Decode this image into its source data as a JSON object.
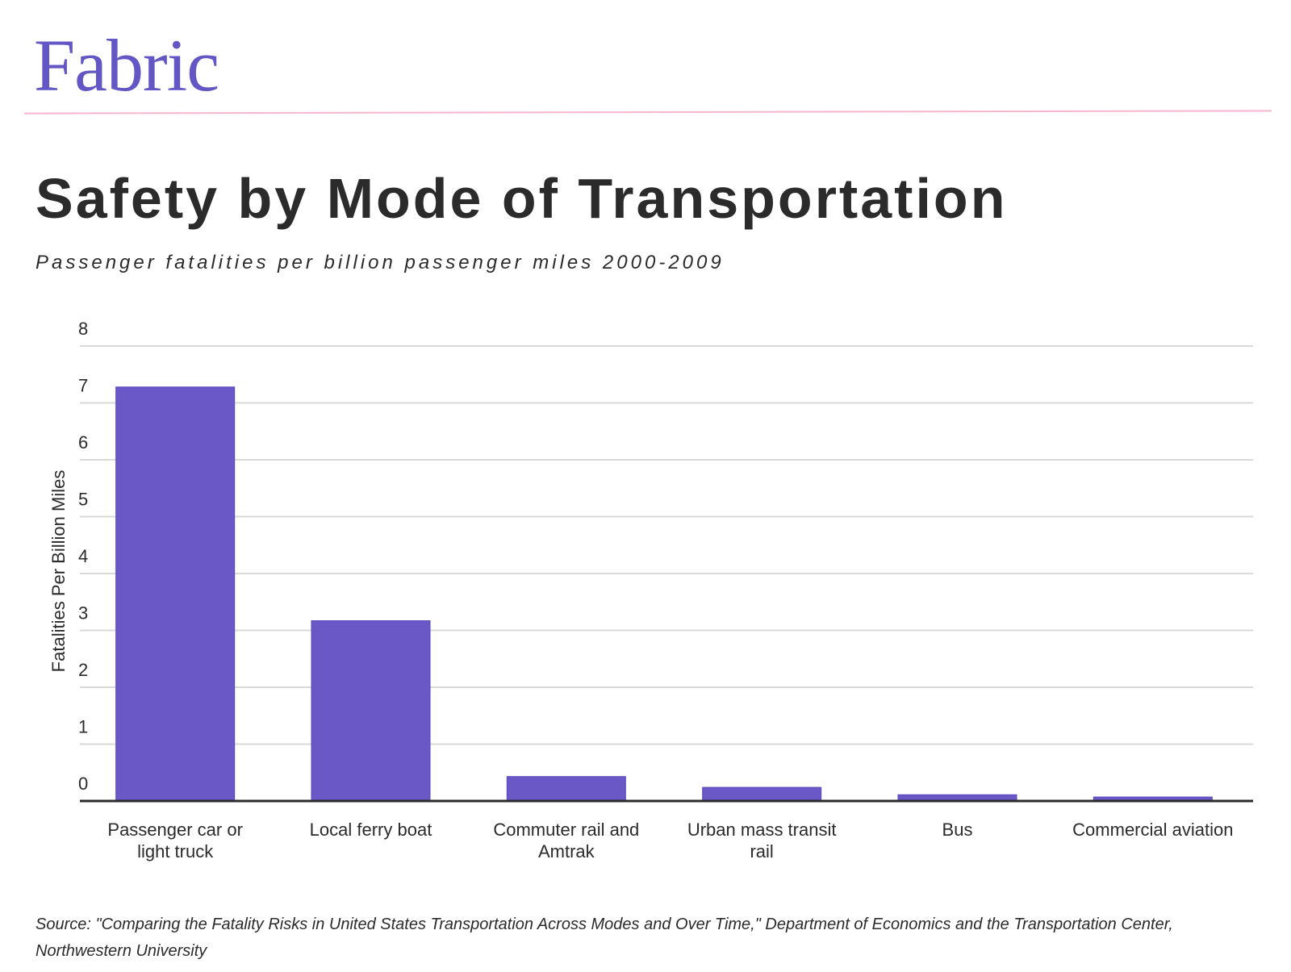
{
  "brand": {
    "logo": "Fabric",
    "accent": "#6257c4",
    "rule_color": "#f7b6cf"
  },
  "chart_data": {
    "type": "bar",
    "title": "Safety by Mode of Transportation",
    "subtitle": "Passenger fatalities per billion passenger miles 2000-2009",
    "xlabel": "",
    "ylabel": "Fatalities Per Billion Miles",
    "ylim": [
      0,
      8
    ],
    "yticks": [
      0,
      1,
      2,
      3,
      4,
      5,
      6,
      7,
      8
    ],
    "grid": true,
    "bar_color": "#6958c6",
    "categories": [
      [
        "Passenger car or",
        "light truck"
      ],
      [
        "Local ferry boat"
      ],
      [
        "Commuter rail and",
        "Amtrak"
      ],
      [
        "Urban mass transit",
        "rail"
      ],
      [
        "Bus"
      ],
      [
        "Commercial aviation"
      ]
    ],
    "values": [
      7.28,
      3.17,
      0.43,
      0.24,
      0.11,
      0.07
    ]
  },
  "source": "Source: \"Comparing the Fatality Risks in United States Transportation Across Modes and Over Time,\" Department of Economics and the Transportation Center, Northwestern University"
}
